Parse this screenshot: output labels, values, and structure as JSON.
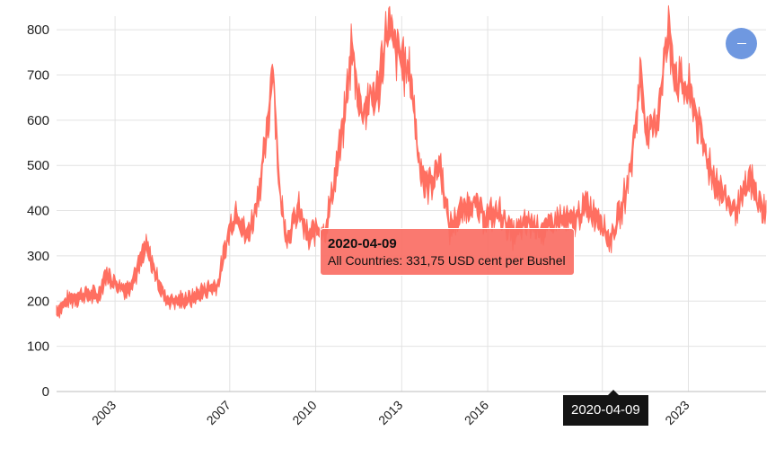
{
  "chart_data": {
    "type": "area",
    "title": "",
    "xlabel": "",
    "ylabel": "",
    "ylim": [
      0,
      830
    ],
    "yticks": [
      0,
      100,
      200,
      300,
      400,
      500,
      600,
      700,
      800
    ],
    "xticks": [
      "2003",
      "2007",
      "2010",
      "2013",
      "2016",
      "2020",
      "2023"
    ],
    "grid": true,
    "legend": "none",
    "color": "#ff6f61",
    "series": [
      {
        "values": [
          [
            "2001-01",
            180
          ],
          [
            "2001-06",
            205
          ],
          [
            "2002-01",
            215
          ],
          [
            "2002-06",
            210
          ],
          [
            "2002-09",
            260
          ],
          [
            "2003-01",
            240
          ],
          [
            "2003-06",
            225
          ],
          [
            "2003-10",
            265
          ],
          [
            "2004-02",
            320
          ],
          [
            "2004-06",
            260
          ],
          [
            "2004-10",
            205
          ],
          [
            "2005-03",
            200
          ],
          [
            "2005-09",
            205
          ],
          [
            "2006-03",
            225
          ],
          [
            "2006-08",
            235
          ],
          [
            "2007-01",
            360
          ],
          [
            "2007-04",
            400
          ],
          [
            "2007-08",
            340
          ],
          [
            "2007-11",
            385
          ],
          [
            "2008-02",
            470
          ],
          [
            "2008-05",
            580
          ],
          [
            "2008-07",
            740
          ],
          [
            "2008-10",
            430
          ],
          [
            "2009-01",
            340
          ],
          [
            "2009-06",
            400
          ],
          [
            "2009-10",
            335
          ],
          [
            "2010-01",
            360
          ],
          [
            "2010-05",
            355
          ],
          [
            "2010-08",
            440
          ],
          [
            "2011-01",
            600
          ],
          [
            "2011-04",
            760
          ],
          [
            "2011-08",
            620
          ],
          [
            "2012-01",
            650
          ],
          [
            "2012-03",
            660
          ],
          [
            "2012-07",
            810
          ],
          [
            "2012-10",
            760
          ],
          [
            "2013-01",
            735
          ],
          [
            "2013-05",
            690
          ],
          [
            "2013-08",
            520
          ],
          [
            "2013-11",
            455
          ],
          [
            "2014-02",
            470
          ],
          [
            "2014-05",
            505
          ],
          [
            "2014-09",
            360
          ],
          [
            "2015-01",
            390
          ],
          [
            "2015-06",
            420
          ],
          [
            "2015-12",
            385
          ],
          [
            "2016-06",
            395
          ],
          [
            "2016-12",
            345
          ],
          [
            "2017-06",
            375
          ],
          [
            "2018-01",
            355
          ],
          [
            "2018-06",
            380
          ],
          [
            "2019-01",
            375
          ],
          [
            "2019-06",
            410
          ],
          [
            "2019-12",
            385
          ],
          [
            "2020-04",
            331.75
          ],
          [
            "2020-09",
            400
          ],
          [
            "2021-01",
            500
          ],
          [
            "2021-05",
            700
          ],
          [
            "2021-08",
            560
          ],
          [
            "2021-12",
            600
          ],
          [
            "2022-03",
            740
          ],
          [
            "2022-05",
            790
          ],
          [
            "2022-08",
            690
          ],
          [
            "2022-12",
            670
          ],
          [
            "2023-03",
            640
          ],
          [
            "2023-07",
            550
          ],
          [
            "2023-11",
            480
          ],
          [
            "2024-03",
            440
          ],
          [
            "2024-08",
            400
          ],
          [
            "2024-12",
            430
          ],
          [
            "2025-03",
            470
          ],
          [
            "2025-06",
            420
          ],
          [
            "2025-09",
            400
          ]
        ]
      }
    ],
    "tooltip": {
      "date": "2020-04-09",
      "label": "All Countries: 331,75 USD cent per Bushel"
    },
    "crosshair_label": "2020-04-09"
  }
}
